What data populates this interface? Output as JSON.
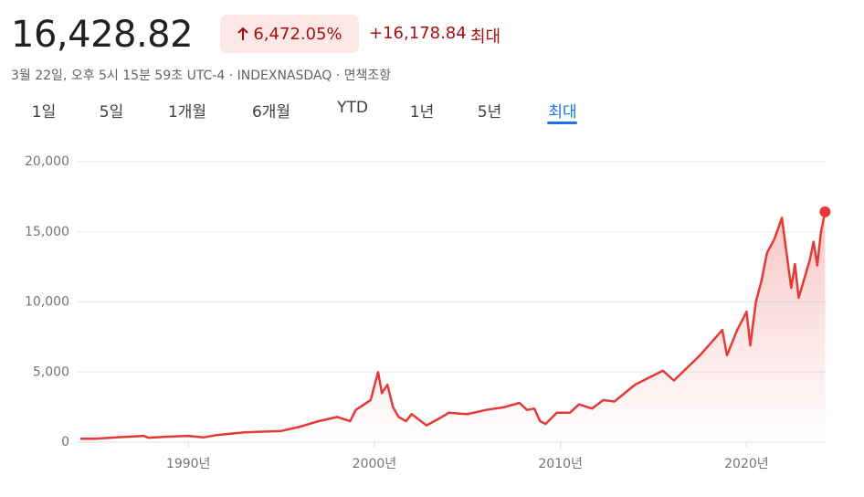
{
  "header": {
    "price": "16,428.82",
    "percent_change": "6,472.05%",
    "change": "+16,178.84",
    "range": "최대",
    "meta": "3월 22일, 오후 5시 15분 59초 UTC-4 · INDEXNASDAQ · 면책조항"
  },
  "tabs": [
    "1일",
    "5일",
    "1개월",
    "6개월",
    "YTD",
    "1년",
    "5년",
    "최대"
  ],
  "chart_data": {
    "type": "line",
    "color": "#e53935",
    "x": [
      1984.2,
      1985,
      1986,
      1987.6,
      1987.85,
      1989,
      1990,
      1990.8,
      1991.5,
      1993,
      1995,
      1996,
      1997,
      1998,
      1998.7,
      1999,
      1999.8,
      2000.2,
      2000.4,
      2000.7,
      2001,
      2001.3,
      2001.7,
      2002,
      2002.8,
      2003.5,
      2004,
      2005,
      2006,
      2007,
      2007.8,
      2008.2,
      2008.6,
      2008.9,
      2009.2,
      2009.8,
      2010.5,
      2011,
      2011.7,
      2012.3,
      2012.9,
      2014,
      2015.5,
      2016.1,
      2016.8,
      2017.5,
      2018.7,
      2018.95,
      2019.5,
      2020,
      2020.2,
      2020.5,
      2020.8,
      2021.1,
      2021.5,
      2021.9,
      2022.4,
      2022.6,
      2022.8,
      2023.4,
      2023.6,
      2023.8,
      2024.0,
      2024.22
    ],
    "values": [
      250,
      250,
      330,
      450,
      320,
      400,
      450,
      340,
      500,
      700,
      800,
      1100,
      1500,
      1800,
      1500,
      2300,
      3000,
      5000,
      3500,
      4100,
      2500,
      1800,
      1500,
      2000,
      1200,
      1700,
      2100,
      2000,
      2300,
      2500,
      2800,
      2300,
      2400,
      1500,
      1300,
      2100,
      2100,
      2700,
      2400,
      3000,
      2900,
      4100,
      5100,
      4400,
      5300,
      6200,
      8000,
      6200,
      8000,
      9300,
      6900,
      10000,
      11500,
      13500,
      14500,
      16000,
      11000,
      12700,
      10300,
      13000,
      14300,
      12600,
      15000,
      16428.82
    ],
    "xlim": [
      1984.2,
      2024.25
    ],
    "xticks": [
      {
        "value": 1990,
        "label": "1990년"
      },
      {
        "value": 2000,
        "label": "2000년"
      },
      {
        "value": 2010,
        "label": "2010년"
      },
      {
        "value": 2020,
        "label": "2020년"
      }
    ],
    "ylim": [
      0,
      20000
    ],
    "yticks": [
      0,
      {
        "value": 5000,
        "label": "5,000"
      },
      {
        "value": 10000,
        "label": "10,000"
      },
      {
        "value": 15000,
        "label": "15,000"
      },
      {
        "value": 20000,
        "label": "20,000"
      }
    ],
    "grid": true
  }
}
